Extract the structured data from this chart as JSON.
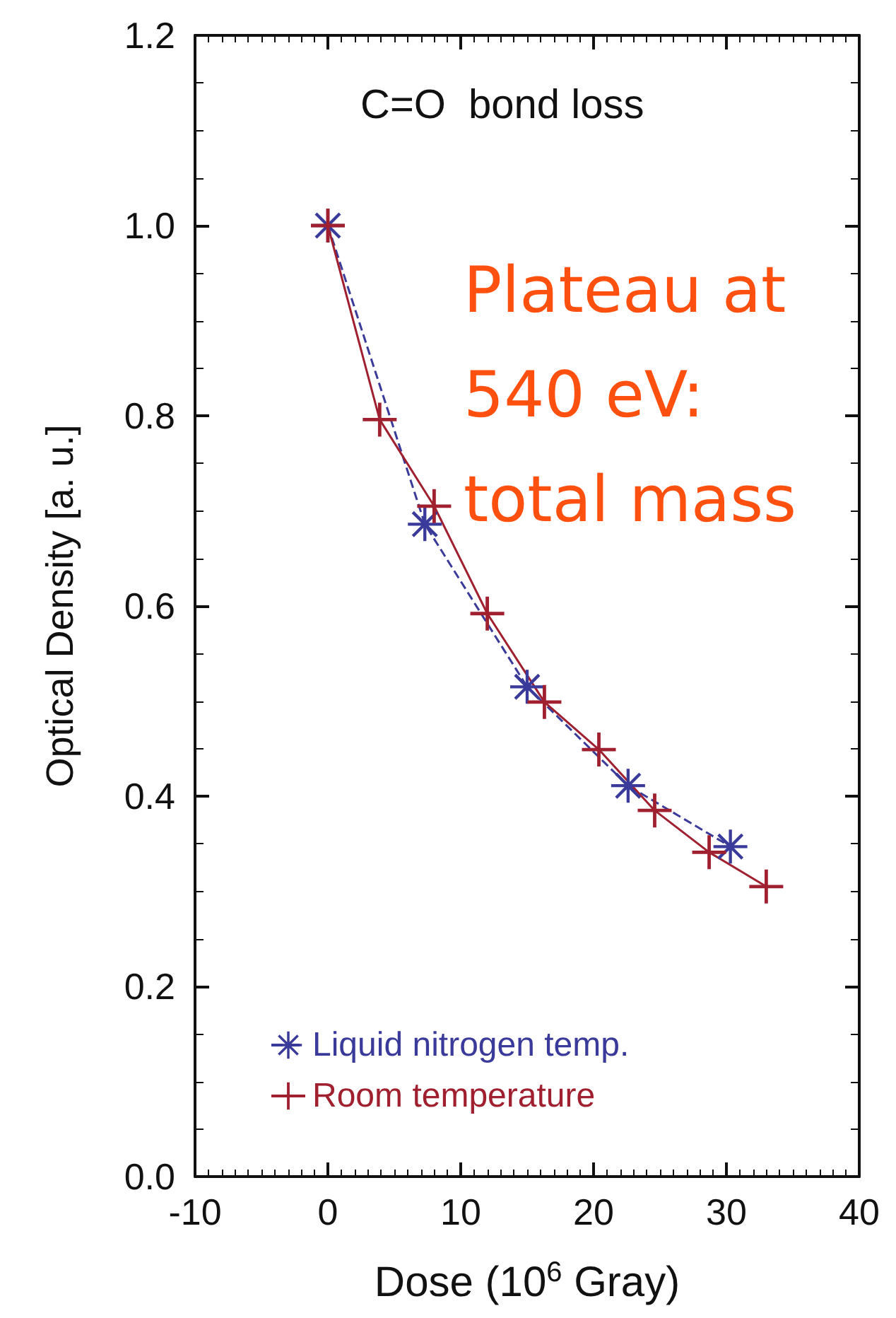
{
  "chart_data": {
    "type": "line",
    "title": "C=O  bond loss",
    "xlabel": "Dose (10$^{6}$ Gray)",
    "ylabel": "Optical Density [a. u.]",
    "annotations": [
      "Plateau at 540 eV: total mass"
    ],
    "xlim": [
      -10,
      40
    ],
    "xticks": [
      -10,
      0,
      10,
      20,
      30,
      40
    ],
    "ylim": [
      0,
      1.2
    ],
    "yticks": [
      {
        "value": 0,
        "label": "0.0"
      },
      0.2,
      0.4,
      0.6,
      0.8,
      {
        "value": 1,
        "label": "1.0"
      },
      1.2
    ],
    "grid": false,
    "legend": "bottom left",
    "series": [
      {
        "name": "Liquid nitrogen temp.",
        "color": "#3a3a9a",
        "marker": "star",
        "line_style": "dashed",
        "x": [
          0,
          7.3,
          15.0,
          22.6,
          30.3
        ],
        "values": [
          1.0,
          0.686,
          0.515,
          0.411,
          0.347
        ]
      },
      {
        "name": "Room temperature",
        "color": "#a02030",
        "marker": "cross",
        "line_style": "solid",
        "x": [
          0,
          3.9,
          8.0,
          12.0,
          16.3,
          20.4,
          24.6,
          28.7,
          33.0
        ],
        "values": [
          1.0,
          0.796,
          0.705,
          0.592,
          0.499,
          0.449,
          0.385,
          0.341,
          0.305
        ]
      }
    ]
  }
}
